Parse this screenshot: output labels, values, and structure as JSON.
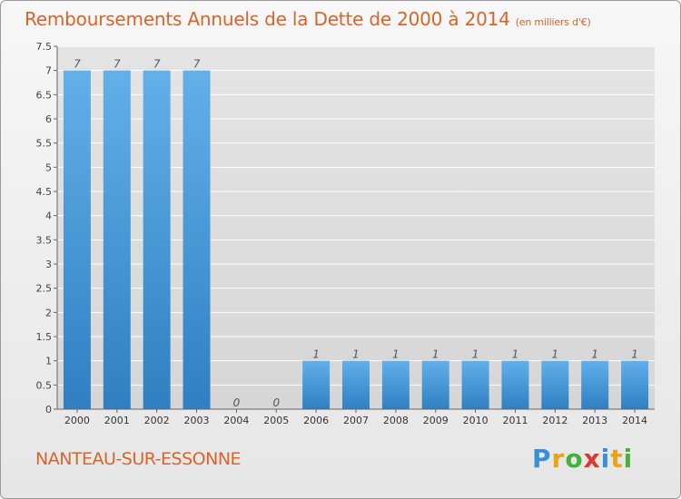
{
  "header": {
    "title": "Remboursements Annuels de la Dette de 2000 à 2014",
    "unit": "(en milliers d'€)"
  },
  "footer": {
    "commune": "NANTEAU-SUR-ESSONNE",
    "logo": {
      "p": "P",
      "r": "r",
      "o": "o",
      "x": "x",
      "i1": "i",
      "t": "t",
      "i2": "i"
    }
  },
  "chart_data": {
    "type": "bar",
    "title": "Remboursements Annuels de la Dette de 2000 à 2014",
    "ylabel": "",
    "xlabel": "",
    "ylim": [
      0,
      7.5
    ],
    "yticks": [
      {
        "value": 0,
        "label": "0"
      },
      {
        "value": 0.5,
        "label": "0.5"
      },
      {
        "value": 1,
        "label": "1"
      },
      {
        "value": 1.5,
        "label": "1.5"
      },
      {
        "value": 2,
        "label": "2"
      },
      {
        "value": 2.5,
        "label": "2.5"
      },
      {
        "value": 3,
        "label": "3"
      },
      {
        "value": 3.5,
        "label": "3.5"
      },
      {
        "value": 4,
        "label": "4"
      },
      {
        "value": 4.5,
        "label": "4.5"
      },
      {
        "value": 5,
        "label": "5"
      },
      {
        "value": 5.5,
        "label": "5.5"
      },
      {
        "value": 6,
        "label": "6"
      },
      {
        "value": 6.5,
        "label": "6.5"
      },
      {
        "value": 7,
        "label": "7"
      },
      {
        "value": 7.5,
        "label": "7.5"
      }
    ],
    "categories": [
      "2000",
      "2001",
      "2002",
      "2003",
      "2004",
      "2005",
      "2006",
      "2007",
      "2008",
      "2009",
      "2010",
      "2011",
      "2012",
      "2013",
      "2014"
    ],
    "values": [
      7,
      7,
      7,
      7,
      0,
      0,
      1,
      1,
      1,
      1,
      1,
      1,
      1,
      1,
      1
    ],
    "data_labels": [
      "7",
      "7",
      "7",
      "7",
      "0",
      "0",
      "1",
      "1",
      "1",
      "1",
      "1",
      "1",
      "1",
      "1",
      "1"
    ],
    "grid": true,
    "colors": {
      "bar_light": "#62b0ea",
      "bar_dark": "#2f7fc2",
      "grid": "#ffffff"
    }
  }
}
